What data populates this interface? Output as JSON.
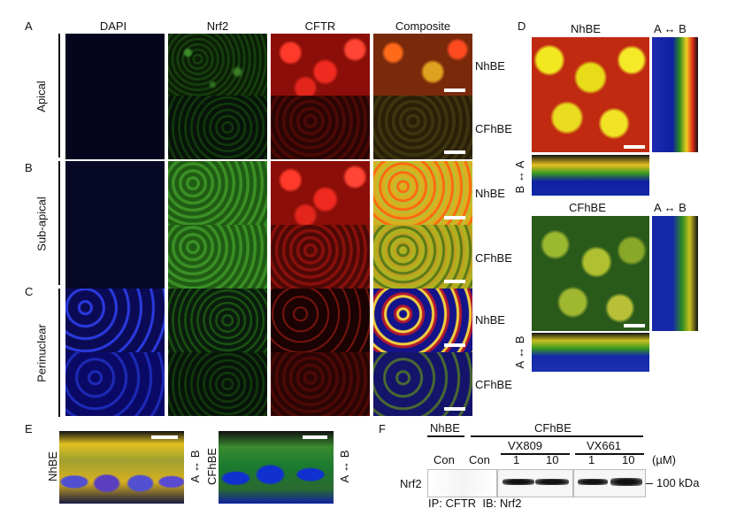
{
  "panels": {
    "A": "A",
    "B": "B",
    "C": "C",
    "D": "D",
    "E": "E",
    "F": "F"
  },
  "columns": [
    "DAPI",
    "Nrf2",
    "CFTR",
    "Composite"
  ],
  "regions": {
    "apical": "Apical",
    "subapical": "Sub-apical",
    "perinuclear": "Perinuclear"
  },
  "cells": {
    "nhbe": "NhBE",
    "cfhbe": "CFhBE"
  },
  "panel_d": {
    "top_title": "NhBE",
    "bottom_title": "CFhBE",
    "axis_ab": "A ↔ B",
    "axis_ba": "B ↔ A"
  },
  "panel_e": {
    "left_label": "NhBE",
    "right_label": "CFhBE",
    "axis_ab": "A ↔ B"
  },
  "panel_f": {
    "group_nhbe": "NhBE",
    "group_cfhbe": "CFhBE",
    "drug1": "VX809",
    "drug2": "VX661",
    "lanes": [
      "Con",
      "Con",
      "1",
      "10",
      "1",
      "10"
    ],
    "unit": "(µM)",
    "row_label": "Nrf2",
    "marker": "100 kDa",
    "footer": "IP: CFTR  IB: Nrf2"
  },
  "colors": {
    "dapi": "#1f2bd8",
    "nrf2": "#2f8f22",
    "cftr": "#e32218",
    "composite": "#e8c020"
  }
}
